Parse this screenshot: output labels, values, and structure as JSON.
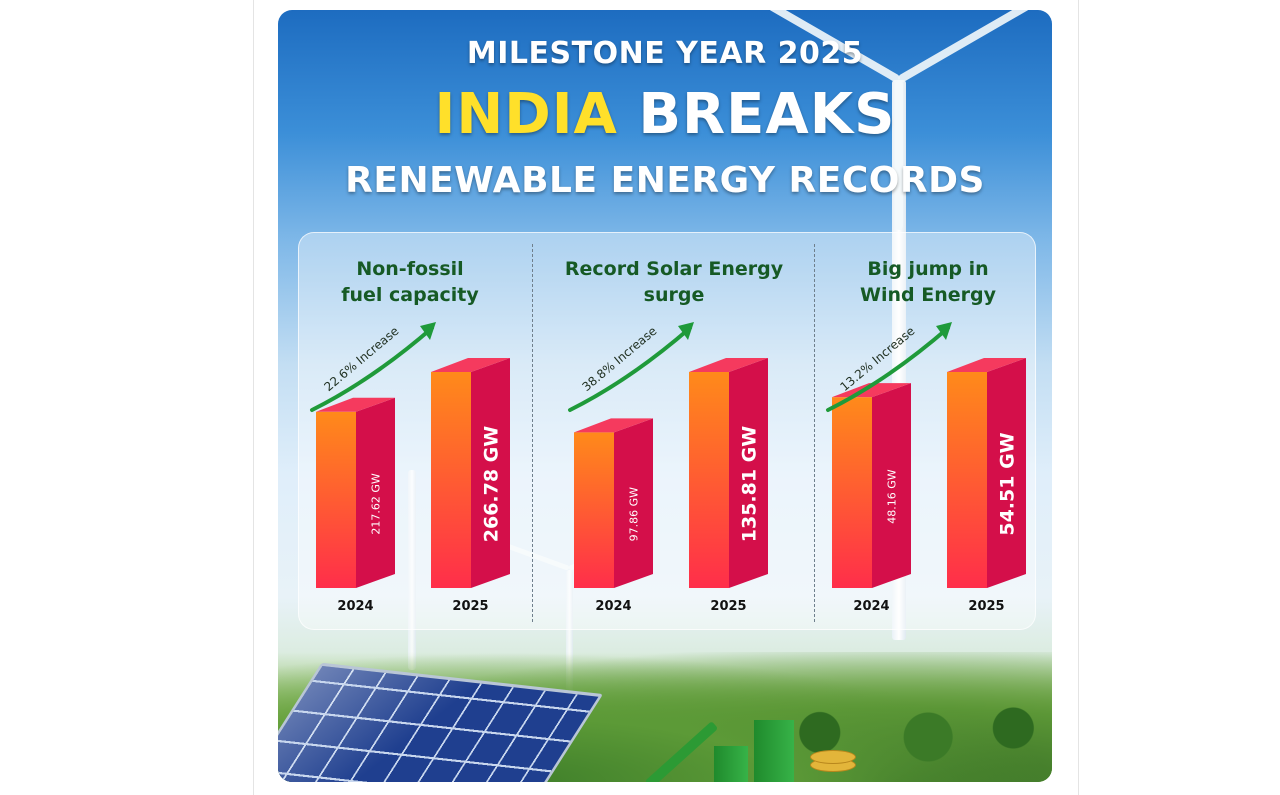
{
  "poster": {
    "title_line1": "MILESTONE YEAR 2025",
    "title_line2_highlight": "INDIA",
    "title_line2_rest": "BREAKS",
    "title_line3": "RENEWABLE ENERGY RECORDS"
  },
  "colors": {
    "bar_front_top": "#ff8a1a",
    "bar_front_bottom": "#ff2e4a",
    "bar_side": "#d40f4a",
    "bar_top": "#f53a5e",
    "arrow": "#1f9a3a",
    "group_title": "#165a25",
    "title_highlight": "#ffe02a"
  },
  "chart_data": [
    {
      "type": "bar",
      "title": "Non-fossil fuel capacity",
      "title_lines": [
        "Non-fossil",
        "fuel capacity"
      ],
      "categories": [
        "2024",
        "2025"
      ],
      "values": [
        217.62,
        266.78
      ],
      "value_labels": [
        "217.62 GW",
        "266.78 GW"
      ],
      "increase_label": "22.6% Increase"
    },
    {
      "type": "bar",
      "title": "Record Solar Energy surge",
      "title_lines": [
        "Record Solar Energy",
        "surge"
      ],
      "categories": [
        "2024",
        "2025"
      ],
      "values": [
        97.86,
        135.81
      ],
      "value_labels": [
        "97.86 GW",
        "135.81 GW"
      ],
      "increase_label": "38.8% Increase"
    },
    {
      "type": "bar",
      "title": "Big jump in Wind Energy",
      "title_lines": [
        "Big jump in",
        "Wind Energy"
      ],
      "categories": [
        "2024",
        "2025"
      ],
      "values": [
        48.16,
        54.51
      ],
      "value_labels": [
        "48.16 GW",
        "54.51 GW"
      ],
      "increase_label": "13.2% Increase"
    }
  ]
}
